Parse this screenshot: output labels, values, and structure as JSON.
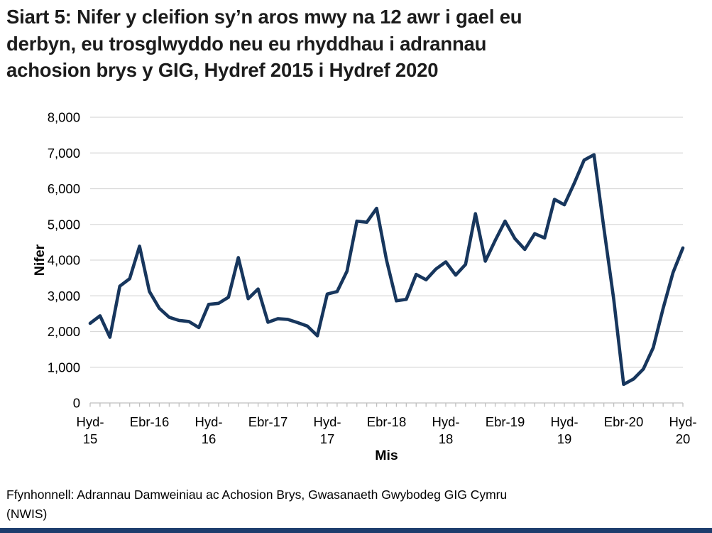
{
  "title_lines": [
    "Siart 5: Nifer y cleifion sy’n aros mwy na 12 awr i gael eu",
    "derbyn, eu trosglwyddo neu eu rhyddhau i adrannau",
    "achosion brys y GIG, Hydref 2015 i Hydref 2020"
  ],
  "source_lines": [
    "Ffynhonnell: Adrannau Damweiniau ac Achosion Brys, Gwasanaeth Gwybodeg GIG Cymru",
    "(NWIS)"
  ],
  "colors": {
    "line": "#17365d",
    "grid": "#d9d9d9",
    "axis": "#bfbfbf",
    "text": "#000000",
    "title_text": "#1c1c1c",
    "footer_bar": "#1d3d6d"
  },
  "chart_data": {
    "type": "line",
    "title": "Siart 5: Nifer y cleifion sy’n aros mwy na 12 awr i gael eu derbyn, eu trosglwyddo neu eu rhyddhau i adrannau achosion brys y GIG, Hydref 2015 i Hydref 2020",
    "xlabel": "Mis",
    "ylabel": "Nifer",
    "ylim": [
      0,
      8000
    ],
    "ytick_step": 1000,
    "grid": true,
    "legend": "none",
    "n_points": 61,
    "x_range_months": "Hydref 2015 - Hydref 2020",
    "x_tick_positions": [
      0,
      6,
      12,
      18,
      24,
      30,
      36,
      42,
      48,
      54,
      60
    ],
    "x_tick_labels": [
      [
        "Hyd-",
        "15"
      ],
      [
        "Ebr-16"
      ],
      [
        "Hyd-",
        "16"
      ],
      [
        "Ebr-17"
      ],
      [
        "Hyd-",
        "17"
      ],
      [
        "Ebr-18"
      ],
      [
        "Hyd-",
        "18"
      ],
      [
        "Ebr-19"
      ],
      [
        "Hyd-",
        "19"
      ],
      [
        "Ebr-20"
      ],
      [
        "Hyd-",
        "20"
      ]
    ],
    "y_tick_labels": [
      "0",
      "1,000",
      "2,000",
      "3,000",
      "4,000",
      "5,000",
      "6,000",
      "7,000",
      "8,000"
    ],
    "values": [
      2230,
      2440,
      1840,
      3270,
      3480,
      4390,
      3120,
      2650,
      2400,
      2310,
      2280,
      2110,
      2760,
      2790,
      2960,
      4070,
      2920,
      3190,
      2260,
      2360,
      2340,
      2250,
      2150,
      1880,
      3050,
      3120,
      3690,
      5090,
      5060,
      5450,
      4000,
      2860,
      2900,
      3600,
      3450,
      3750,
      3950,
      3580,
      3880,
      5300,
      3970,
      4550,
      5090,
      4600,
      4300,
      4740,
      4620,
      5700,
      5550,
      6150,
      6800,
      6950,
      4900,
      2900,
      520,
      670,
      950,
      1550,
      2650,
      3650,
      4340
    ]
  }
}
